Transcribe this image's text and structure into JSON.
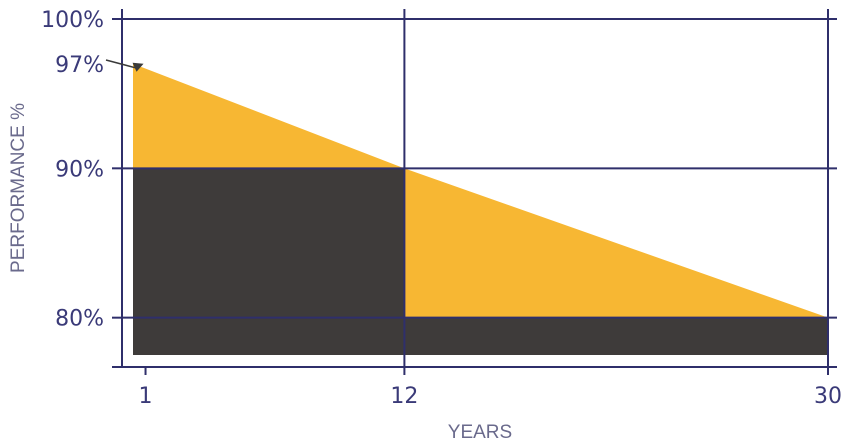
{
  "chart_data": {
    "type": "area",
    "xlabel": "YEARS",
    "ylabel": "PERFORMANCE %",
    "x_ticks": [
      {
        "value": 1,
        "label": "1"
      },
      {
        "value": 12,
        "label": "12"
      },
      {
        "value": 30,
        "label": "30"
      }
    ],
    "y_ticks": [
      {
        "value": 100,
        "label": "100%"
      },
      {
        "value": 90,
        "label": "90%"
      },
      {
        "value": 80,
        "label": "80%"
      }
    ],
    "xlim": [
      0,
      30
    ],
    "ylim": [
      77.5,
      100
    ],
    "grid": true,
    "series": [
      {
        "type": "area",
        "color": "#f7b733",
        "x": [
          0,
          12,
          30
        ],
        "y": [
          97,
          90,
          80
        ]
      },
      {
        "type": "step",
        "color": "#3e3b3a",
        "x": [
          0,
          12,
          12,
          30
        ],
        "y": [
          90,
          90,
          80,
          80
        ]
      }
    ],
    "annotations": [
      {
        "text": "97%",
        "x": 1,
        "y": 97
      }
    ],
    "colors": {
      "axis": "#2f2f6b",
      "text": "#3a3a78",
      "axis_title": "#6a6a8c"
    }
  }
}
